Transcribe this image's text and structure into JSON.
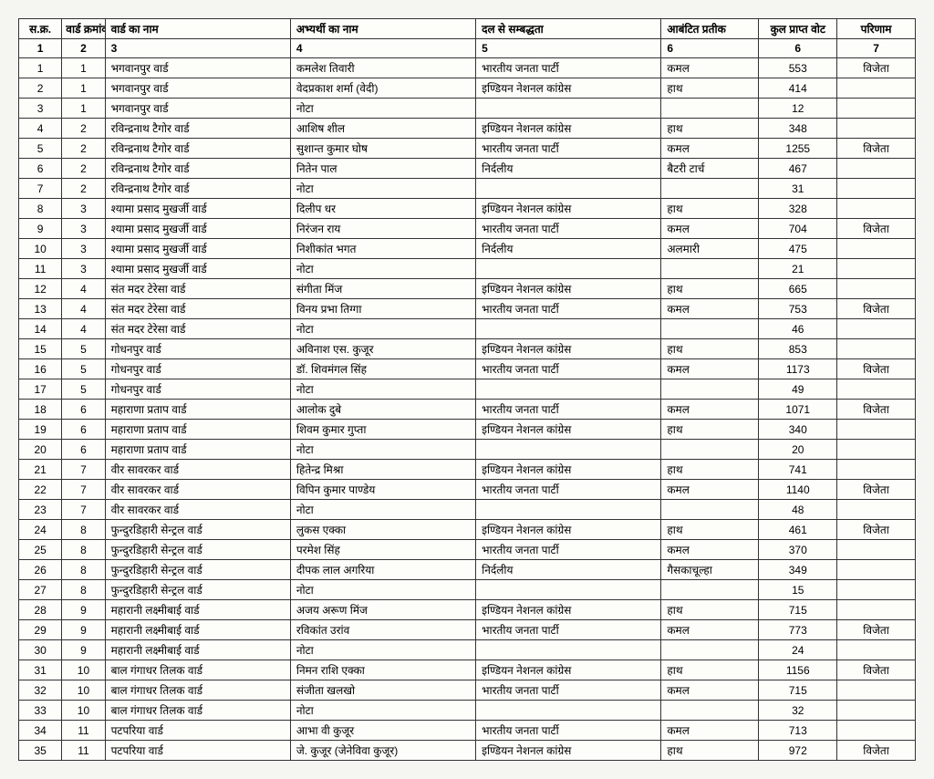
{
  "headers": [
    "स.क्र.",
    "वार्ड क्रमांक",
    "वार्ड का नाम",
    "अभ्यर्थी का नाम",
    "दल से सम्बद्धता",
    "आबंटित प्रतीक",
    "कुल प्राप्त वोट",
    "परिणाम"
  ],
  "subheaders": [
    "1",
    "2",
    "3",
    "4",
    "5",
    "6",
    "6",
    "7"
  ],
  "rows": [
    [
      "1",
      "1",
      "भगवानपुर वार्ड",
      "कमलेश तिवारी",
      "भारतीय जनता पार्टी",
      "कमल",
      "553",
      "विजेता"
    ],
    [
      "2",
      "1",
      "भगवानपुर वार्ड",
      "वेदप्रकाश शर्मा (वेदी)",
      "इण्डियन नेशनल कांग्रेस",
      "हाथ",
      "414",
      ""
    ],
    [
      "3",
      "1",
      "भगवानपुर वार्ड",
      "नोटा",
      "",
      "",
      "12",
      ""
    ],
    [
      "4",
      "2",
      "रविन्द्रनाथ टैगोर वार्ड",
      "आशिष शील",
      "इण्डियन नेशनल कांग्रेस",
      "हाथ",
      "348",
      ""
    ],
    [
      "5",
      "2",
      "रविन्द्रनाथ टैगोर वार्ड",
      "सुशान्त कुमार घोष",
      "भारतीय जनता पार्टी",
      "कमल",
      "1255",
      "विजेता"
    ],
    [
      "6",
      "2",
      "रविन्द्रनाथ टैगोर वार्ड",
      "नितेन पाल",
      "निर्दलीय",
      "बैटरी टार्च",
      "467",
      ""
    ],
    [
      "7",
      "2",
      "रविन्द्रनाथ टैगोर वार्ड",
      "नोटा",
      "",
      "",
      "31",
      ""
    ],
    [
      "8",
      "3",
      "श्यामा प्रसाद मुखर्जी वार्ड",
      "दिलीप धर",
      "इण्डियन नेशनल कांग्रेस",
      "हाथ",
      "328",
      ""
    ],
    [
      "9",
      "3",
      "श्यामा प्रसाद मुखर्जी वार्ड",
      "निरंजन राय",
      "भारतीय जनता पार्टी",
      "कमल",
      "704",
      "विजेता"
    ],
    [
      "10",
      "3",
      "श्यामा प्रसाद मुखर्जी वार्ड",
      "निशीकांत भगत",
      "निर्दलीय",
      "अलमारी",
      "475",
      ""
    ],
    [
      "11",
      "3",
      "श्यामा प्रसाद मुखर्जी वार्ड",
      "नोटा",
      "",
      "",
      "21",
      ""
    ],
    [
      "12",
      "4",
      "संत मदर टेरेसा वार्ड",
      "संगीता मिंज",
      "इण्डियन नेशनल कांग्रेस",
      "हाथ",
      "665",
      ""
    ],
    [
      "13",
      "4",
      "संत मदर टेरेसा वार्ड",
      "विनय प्रभा तिग्गा",
      "भारतीय जनता पार्टी",
      "कमल",
      "753",
      "विजेता"
    ],
    [
      "14",
      "4",
      "संत मदर टेरेसा वार्ड",
      "नोटा",
      "",
      "",
      "46",
      ""
    ],
    [
      "15",
      "5",
      "गोधनपुर वार्ड",
      "अविनाश एस. कुजूर",
      "इण्डियन नेशनल कांग्रेस",
      "हाथ",
      "853",
      ""
    ],
    [
      "16",
      "5",
      "गोधनपुर वार्ड",
      "डॉ. शिवमंगल सिंह",
      "भारतीय जनता पार्टी",
      "कमल",
      "1173",
      "विजेता"
    ],
    [
      "17",
      "5",
      "गोधनपुर वार्ड",
      "नोटा",
      "",
      "",
      "49",
      ""
    ],
    [
      "18",
      "6",
      "महाराणा प्रताप वार्ड",
      "आलोक दुबे",
      "भारतीय जनता पार्टी",
      "कमल",
      "1071",
      "विजेता"
    ],
    [
      "19",
      "6",
      "महाराणा प्रताप वार्ड",
      "शिवम कुमार गुप्ता",
      "इण्डियन नेशनल कांग्रेस",
      "हाथ",
      "340",
      ""
    ],
    [
      "20",
      "6",
      "महाराणा प्रताप वार्ड",
      "नोटा",
      "",
      "",
      "20",
      ""
    ],
    [
      "21",
      "7",
      "वीर सावरकर वार्ड",
      "हितेन्द्र मिश्रा",
      "इण्डियन नेशनल कांग्रेस",
      "हाथ",
      "741",
      ""
    ],
    [
      "22",
      "7",
      "वीर सावरकर वार्ड",
      "विपिन कुमार पाण्डेय",
      "भारतीय जनता पार्टी",
      "कमल",
      "1140",
      "विजेता"
    ],
    [
      "23",
      "7",
      "वीर सावरकर वार्ड",
      "नोटा",
      "",
      "",
      "48",
      ""
    ],
    [
      "24",
      "8",
      "फुन्दुरडिहारी सेन्ट्रल वार्ड",
      "लुकस एक्का",
      "इण्डियन नेशनल कांग्रेस",
      "हाथ",
      "461",
      "विजेता"
    ],
    [
      "25",
      "8",
      "फुन्दुरडिहारी सेन्ट्रल वार्ड",
      "परमेश सिंह",
      "भारतीय जनता पार्टी",
      "कमल",
      "370",
      ""
    ],
    [
      "26",
      "8",
      "फुन्दुरडिहारी सेन्ट्रल वार्ड",
      "दीपक लाल अगरिया",
      "निर्दलीय",
      "गैसकाचूल्हा",
      "349",
      ""
    ],
    [
      "27",
      "8",
      "फुन्दुरडिहारी सेन्ट्रल वार्ड",
      "नोटा",
      "",
      "",
      "15",
      ""
    ],
    [
      "28",
      "9",
      "महारानी लक्ष्मीबाई वार्ड",
      "अजय अरूण मिंज",
      "इण्डियन नेशनल कांग्रेस",
      "हाथ",
      "715",
      ""
    ],
    [
      "29",
      "9",
      "महारानी लक्ष्मीबाई वार्ड",
      "रविकांत उरांव",
      "भारतीय जनता पार्टी",
      "कमल",
      "773",
      "विजेता"
    ],
    [
      "30",
      "9",
      "महारानी लक्ष्मीबाई वार्ड",
      "नोटा",
      "",
      "",
      "24",
      ""
    ],
    [
      "31",
      "10",
      "बाल गंगाधर तिलक वार्ड",
      "निमन राशि एक्का",
      "इण्डियन नेशनल कांग्रेस",
      "हाथ",
      "1156",
      "विजेता"
    ],
    [
      "32",
      "10",
      "बाल गंगाधर तिलक वार्ड",
      "संजीता खलखो",
      "भारतीय जनता पार्टी",
      "कमल",
      "715",
      ""
    ],
    [
      "33",
      "10",
      "बाल गंगाधर तिलक वार्ड",
      "नोटा",
      "",
      "",
      "32",
      ""
    ],
    [
      "34",
      "11",
      "पटपरिया वार्ड",
      "आभा वी कुजूर",
      "भारतीय जनता पार्टी",
      "कमल",
      "713",
      ""
    ],
    [
      "35",
      "11",
      "पटपरिया वार्ड",
      "जे. कुजूर (जेनेविवा कुजूर)",
      "इण्डियन नेशनल कांग्रेस",
      "हाथ",
      "972",
      "विजेता"
    ]
  ],
  "col_classes": [
    "col-sno",
    "col-wno",
    "col-wname",
    "col-cand",
    "col-party",
    "col-symbol",
    "col-votes",
    "col-result"
  ]
}
